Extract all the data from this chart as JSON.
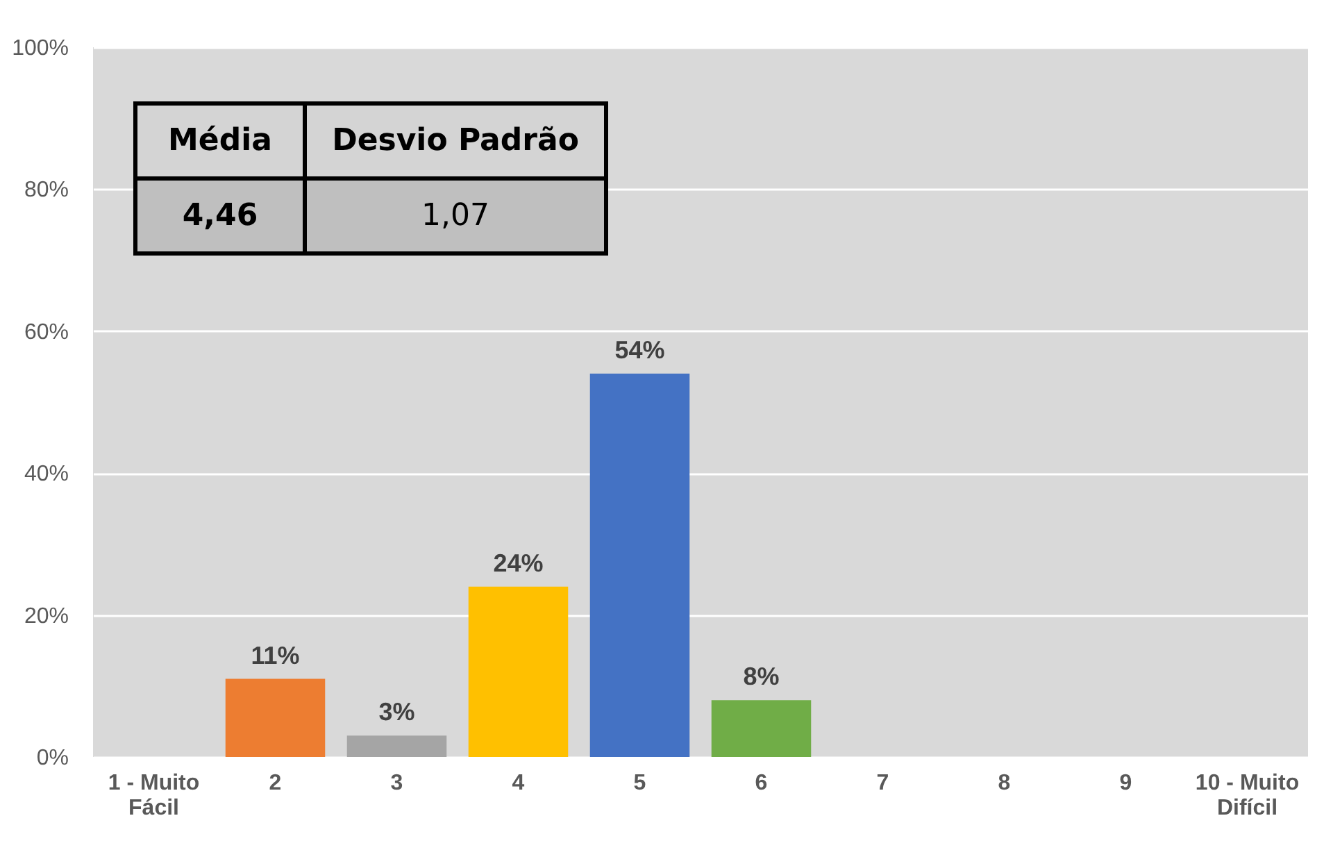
{
  "chart_data": {
    "type": "bar",
    "categories": [
      "1 - Muito Fácil",
      "2",
      "3",
      "4",
      "5",
      "6",
      "7",
      "8",
      "9",
      "10 - Muito Difícil"
    ],
    "values": [
      null,
      11,
      3,
      24,
      54,
      8,
      null,
      null,
      null,
      null
    ],
    "value_labels": [
      null,
      "11%",
      "3%",
      "24%",
      "54%",
      "8%",
      null,
      null,
      null,
      null
    ],
    "colors": [
      null,
      "#ed7d31",
      "#a5a5a5",
      "#ffc000",
      "#4472c4",
      "#70ad47",
      null,
      null,
      null,
      null
    ],
    "ylim": [
      0,
      100
    ],
    "yticks": [
      {
        "value": 0,
        "label": "0%"
      },
      {
        "value": 20,
        "label": "20%"
      },
      {
        "value": 40,
        "label": "40%"
      },
      {
        "value": 60,
        "label": "60%"
      },
      {
        "value": 80,
        "label": "80%"
      },
      {
        "value": 100,
        "label": "100%"
      }
    ],
    "grid": "y",
    "annotations": [
      "Média",
      "Desvio Padrão",
      "4,46",
      "1,07"
    ]
  }
}
